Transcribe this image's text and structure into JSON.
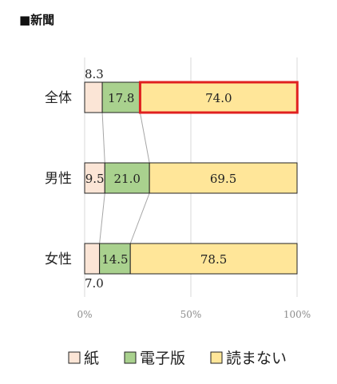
{
  "title": "■新聞",
  "chart_data": {
    "type": "bar",
    "stacked": true,
    "orientation": "horizontal",
    "percent": true,
    "categories": [
      "全体",
      "男性",
      "女性"
    ],
    "series": [
      {
        "name": "紙",
        "values": [
          8.3,
          9.5,
          7.0
        ],
        "color": "#fbe5d6"
      },
      {
        "name": "電子版",
        "values": [
          17.8,
          21.0,
          14.5
        ],
        "color": "#a9d18e"
      },
      {
        "name": "読まない",
        "values": [
          74.0,
          69.5,
          78.5
        ],
        "color": "#ffe699"
      }
    ],
    "value_labels": [
      [
        "8.3",
        "17.8",
        "74.0"
      ],
      [
        "9.5",
        "21.0",
        "69.5"
      ],
      [
        "7.0",
        "14.5",
        "78.5"
      ]
    ],
    "xticks": [
      "0%",
      "50%",
      "100%"
    ],
    "xlim": [
      0,
      100
    ],
    "grid": true,
    "legend_position": "bottom",
    "highlight": {
      "category": "全体",
      "series": "読まない",
      "color": "#e02020"
    }
  }
}
